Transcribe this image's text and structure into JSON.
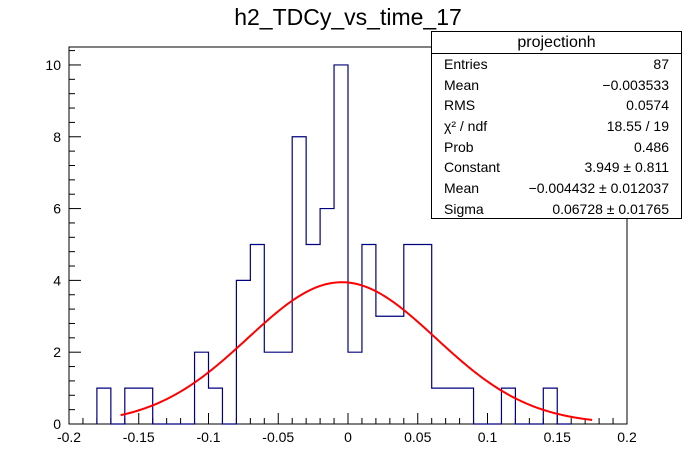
{
  "chart_data": {
    "type": "bar",
    "title": "h2_TDCy_vs_time_17",
    "xlabel": "",
    "ylabel": "",
    "xlim": [
      -0.2,
      0.2
    ],
    "ylim": [
      0,
      10.5
    ],
    "bin_width": 0.01,
    "bin_edges_start": -0.18,
    "counts": [
      1,
      0,
      1,
      1,
      0,
      0,
      0,
      2,
      1,
      0,
      4,
      5,
      2,
      2,
      8,
      5,
      6,
      10,
      2,
      5,
      3,
      3,
      5,
      5,
      1,
      1,
      1,
      0,
      0,
      1,
      0,
      0,
      1,
      0
    ],
    "x_ticks": [
      "-0.2",
      "-0.15",
      "-0.1",
      "-0.05",
      "0",
      "0.05",
      "0.1",
      "0.15",
      "0.2"
    ],
    "x_tick_values": [
      -0.2,
      -0.15,
      -0.1,
      -0.05,
      0,
      0.05,
      0.1,
      0.15,
      0.2
    ],
    "y_ticks": [
      "0",
      "2",
      "4",
      "6",
      "8",
      "10"
    ],
    "y_tick_values": [
      0,
      2,
      4,
      6,
      8,
      10
    ],
    "fit": {
      "function": "gaus",
      "constant": 3.949,
      "mean": -0.004432,
      "sigma": 0.06728,
      "x_range": [
        -0.163,
        0.175
      ]
    },
    "histogram_color": "#00007f",
    "fit_color": "#ff0000",
    "grid": false,
    "legend_position": "top-right"
  },
  "stats": {
    "title": "projectionh",
    "rows": [
      {
        "name": "Entries",
        "value": "87"
      },
      {
        "name": "Mean",
        "value": "−0.003533"
      },
      {
        "name": "RMS",
        "value": "0.0574"
      },
      {
        "name": "χ² / ndf",
        "value": "18.55 / 19"
      },
      {
        "name": "Prob",
        "value": "0.486"
      },
      {
        "name": "Constant",
        "value": "3.949 ± 0.811"
      },
      {
        "name": "Mean",
        "value": "−0.004432 ± 0.012037"
      },
      {
        "name": "Sigma",
        "value": "0.06728 ± 0.01765"
      }
    ]
  }
}
